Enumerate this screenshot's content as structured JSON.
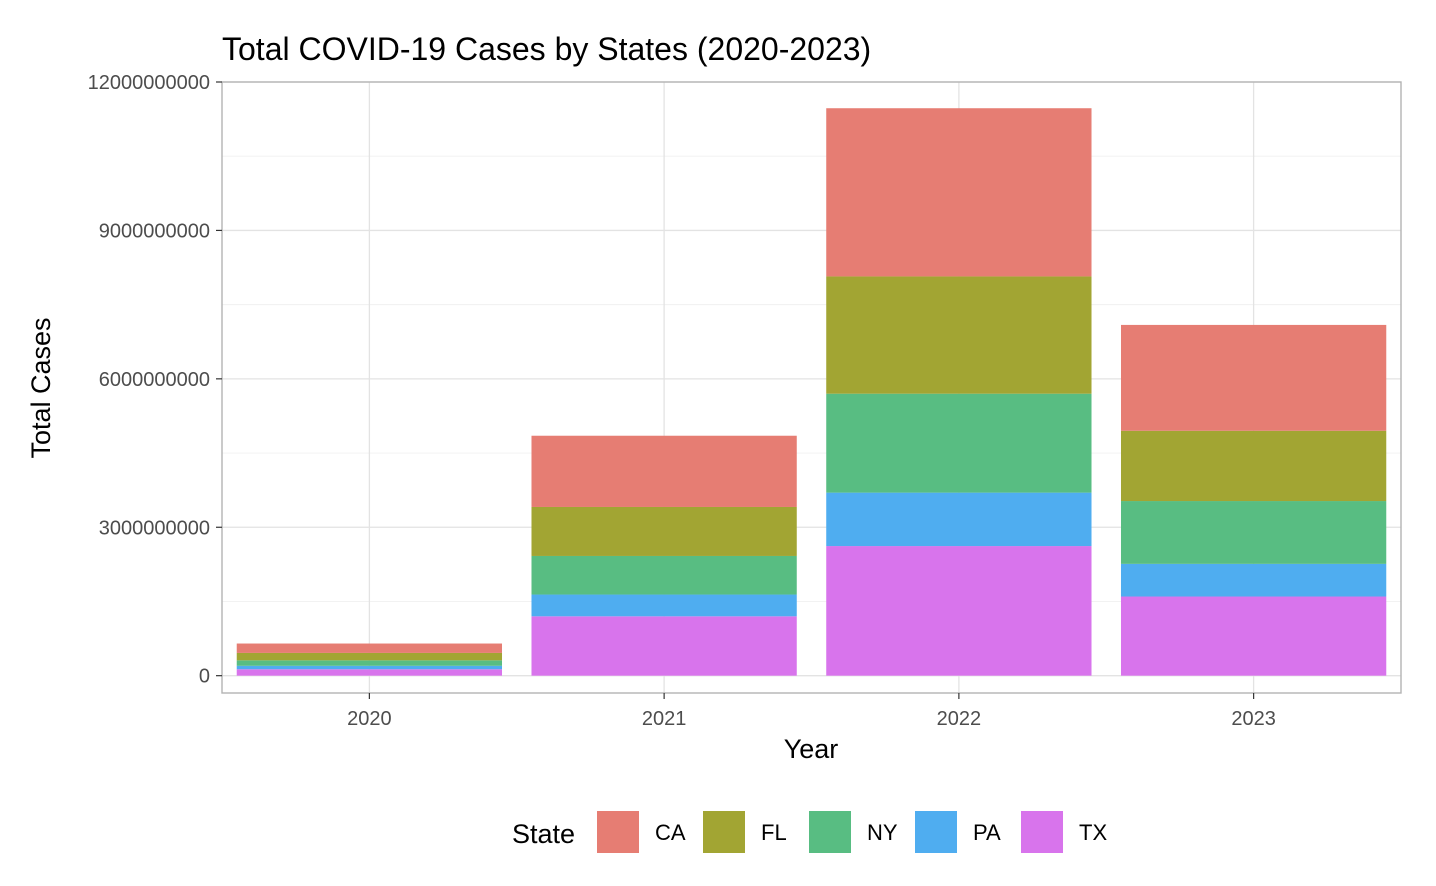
{
  "chart_data": {
    "type": "bar",
    "stacked": true,
    "title": "Total COVID-19 Cases by States (2020-2023)",
    "xlabel": "Year",
    "ylabel": "Total Cases",
    "categories": [
      "2020",
      "2021",
      "2022",
      "2023"
    ],
    "ylim": [
      -350000000,
      12000000000
    ],
    "yticks": [
      0,
      3000000000,
      6000000000,
      9000000000,
      12000000000
    ],
    "ytick_labels": [
      "0",
      "3000000000",
      "6000000000",
      "9000000000",
      "12000000000"
    ],
    "grid": true,
    "legend": {
      "title": "State",
      "position": "bottom"
    },
    "series": [
      {
        "name": "TX",
        "color": "#D874EC",
        "values": [
          130000000,
          1200000000,
          2620000000,
          1600000000
        ]
      },
      {
        "name": "PA",
        "color": "#4FADF0",
        "values": [
          70000000,
          440000000,
          1080000000,
          660000000
        ]
      },
      {
        "name": "NY",
        "color": "#58BD82",
        "values": [
          110000000,
          780000000,
          2000000000,
          1270000000
        ]
      },
      {
        "name": "FL",
        "color": "#A2A533",
        "values": [
          150000000,
          990000000,
          2370000000,
          1420000000
        ]
      },
      {
        "name": "CA",
        "color": "#E67D73",
        "values": [
          190000000,
          1440000000,
          3400000000,
          2140000000
        ]
      }
    ],
    "legend_order": [
      "CA",
      "FL",
      "NY",
      "PA",
      "TX"
    ]
  }
}
